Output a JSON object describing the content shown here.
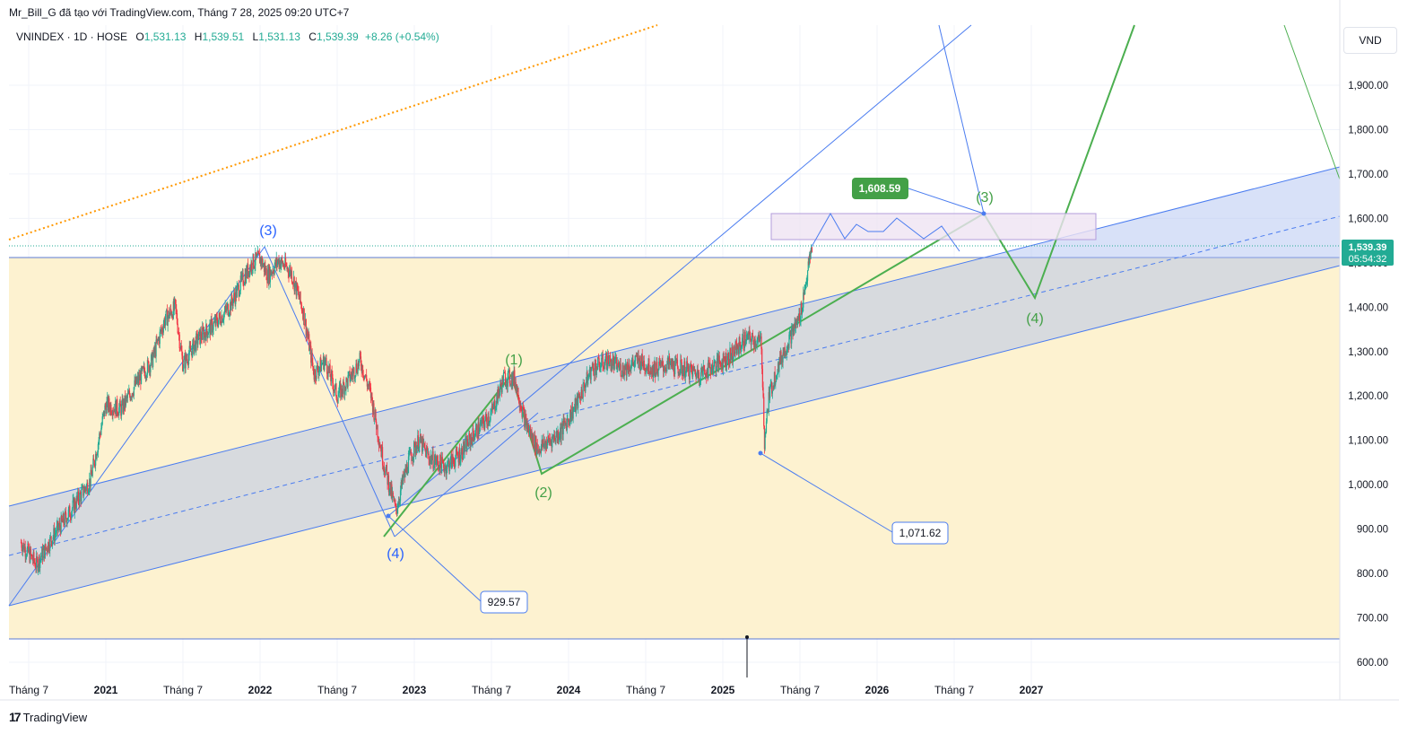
{
  "header": {
    "attribution": "Mr_Bill_G đã tạo với TradingView.com, Tháng 7 28, 2025 09:20 UTC+7"
  },
  "legend": {
    "symbol": "VNINDEX · 1D · HOSE",
    "open_label": "O",
    "open": "1,531.13",
    "high_label": "H",
    "high": "1,539.51",
    "low_label": "L",
    "low": "1,531.13",
    "close_label": "C",
    "close": "1,539.39",
    "change": "+8.26 (+0.54%)"
  },
  "currency": "VND",
  "price_axis": {
    "current_price": "1,539.39",
    "countdown": "05:54:32",
    "current_color": "#22ab94"
  },
  "annotations": {
    "label_929": "929.57",
    "label_1071": "1,071.62",
    "label_1608": "1,608.59",
    "blue_wave_3": "(3)",
    "blue_wave_4": "(4)",
    "green_wave_1": "(1)",
    "green_wave_2": "(2)",
    "green_wave_3": "(3)",
    "green_wave_4": "(4)"
  },
  "footer": {
    "brand": "TradingView"
  },
  "colors": {
    "up": "#22ab94",
    "down": "#f23645",
    "blue_lines": "#4a7cf0",
    "green_lines": "#4caf50",
    "orange_dotted": "#ff9800",
    "yellow_zone": "#fdf2d0",
    "channel_fill": "#c9cfe3"
  },
  "chart_data": {
    "type": "candlestick",
    "title": "VNINDEX · 1D · HOSE",
    "ylabel": "VND",
    "ylim": [
      580,
      2000
    ],
    "y_ticks": [
      "600.00",
      "700.00",
      "800.00",
      "900.00",
      "1,000.00",
      "1,100.00",
      "1,200.00",
      "1,300.00",
      "1,400.00",
      "1,500.00",
      "1,600.00",
      "1,700.00",
      "1,800.00",
      "1,900.00"
    ],
    "x_ticks": [
      "Tháng 7",
      "2021",
      "Tháng 7",
      "2022",
      "Tháng 7",
      "2023",
      "Tháng 7",
      "2024",
      "Tháng 7",
      "2025",
      "Tháng 7",
      "2026",
      "Tháng 7",
      "2027"
    ],
    "x_tick_dates": [
      2020.5,
      2021.0,
      2021.5,
      2022.0,
      2022.5,
      2023.0,
      2023.5,
      2024.0,
      2024.5,
      2025.0,
      2025.5,
      2026.0,
      2026.5,
      2027.0
    ],
    "price_path": [
      [
        2020.45,
        870
      ],
      [
        2020.55,
        820
      ],
      [
        2020.65,
        880
      ],
      [
        2020.75,
        930
      ],
      [
        2020.9,
        1010
      ],
      [
        2021.0,
        1180
      ],
      [
        2021.1,
        1170
      ],
      [
        2021.2,
        1230
      ],
      [
        2021.3,
        1280
      ],
      [
        2021.38,
        1370
      ],
      [
        2021.45,
        1400
      ],
      [
        2021.5,
        1270
      ],
      [
        2021.6,
        1330
      ],
      [
        2021.7,
        1360
      ],
      [
        2021.8,
        1400
      ],
      [
        2021.9,
        1470
      ],
      [
        2021.95,
        1500
      ],
      [
        2022.0,
        1510
      ],
      [
        2022.05,
        1470
      ],
      [
        2022.12,
        1505
      ],
      [
        2022.2,
        1480
      ],
      [
        2022.28,
        1390
      ],
      [
        2022.35,
        1250
      ],
      [
        2022.42,
        1280
      ],
      [
        2022.5,
        1200
      ],
      [
        2022.58,
        1240
      ],
      [
        2022.65,
        1280
      ],
      [
        2022.72,
        1200
      ],
      [
        2022.8,
        1050
      ],
      [
        2022.88,
        940
      ],
      [
        2022.92,
        1000
      ],
      [
        2022.97,
        1060
      ],
      [
        2023.03,
        1100
      ],
      [
        2023.1,
        1060
      ],
      [
        2023.2,
        1040
      ],
      [
        2023.3,
        1070
      ],
      [
        2023.4,
        1120
      ],
      [
        2023.5,
        1160
      ],
      [
        2023.58,
        1240
      ],
      [
        2023.65,
        1240
      ],
      [
        2023.72,
        1140
      ],
      [
        2023.8,
        1080
      ],
      [
        2023.88,
        1100
      ],
      [
        2023.95,
        1120
      ],
      [
        2024.05,
        1180
      ],
      [
        2024.15,
        1260
      ],
      [
        2024.25,
        1280
      ],
      [
        2024.35,
        1260
      ],
      [
        2024.45,
        1280
      ],
      [
        2024.55,
        1260
      ],
      [
        2024.65,
        1270
      ],
      [
        2024.75,
        1260
      ],
      [
        2024.85,
        1250
      ],
      [
        2024.95,
        1270
      ],
      [
        2025.05,
        1290
      ],
      [
        2025.15,
        1330
      ],
      [
        2025.25,
        1320
      ],
      [
        2025.27,
        1100
      ],
      [
        2025.3,
        1200
      ],
      [
        2025.35,
        1260
      ],
      [
        2025.42,
        1320
      ],
      [
        2025.5,
        1380
      ],
      [
        2025.54,
        1460
      ],
      [
        2025.58,
        1539
      ]
    ],
    "last_price": 1539.39,
    "levels": [
      {
        "label": "929.57",
        "value": 929.57
      },
      {
        "label": "1,071.62",
        "value": 1071.62
      },
      {
        "label": "1,608.59",
        "value": 1608.59
      }
    ]
  }
}
